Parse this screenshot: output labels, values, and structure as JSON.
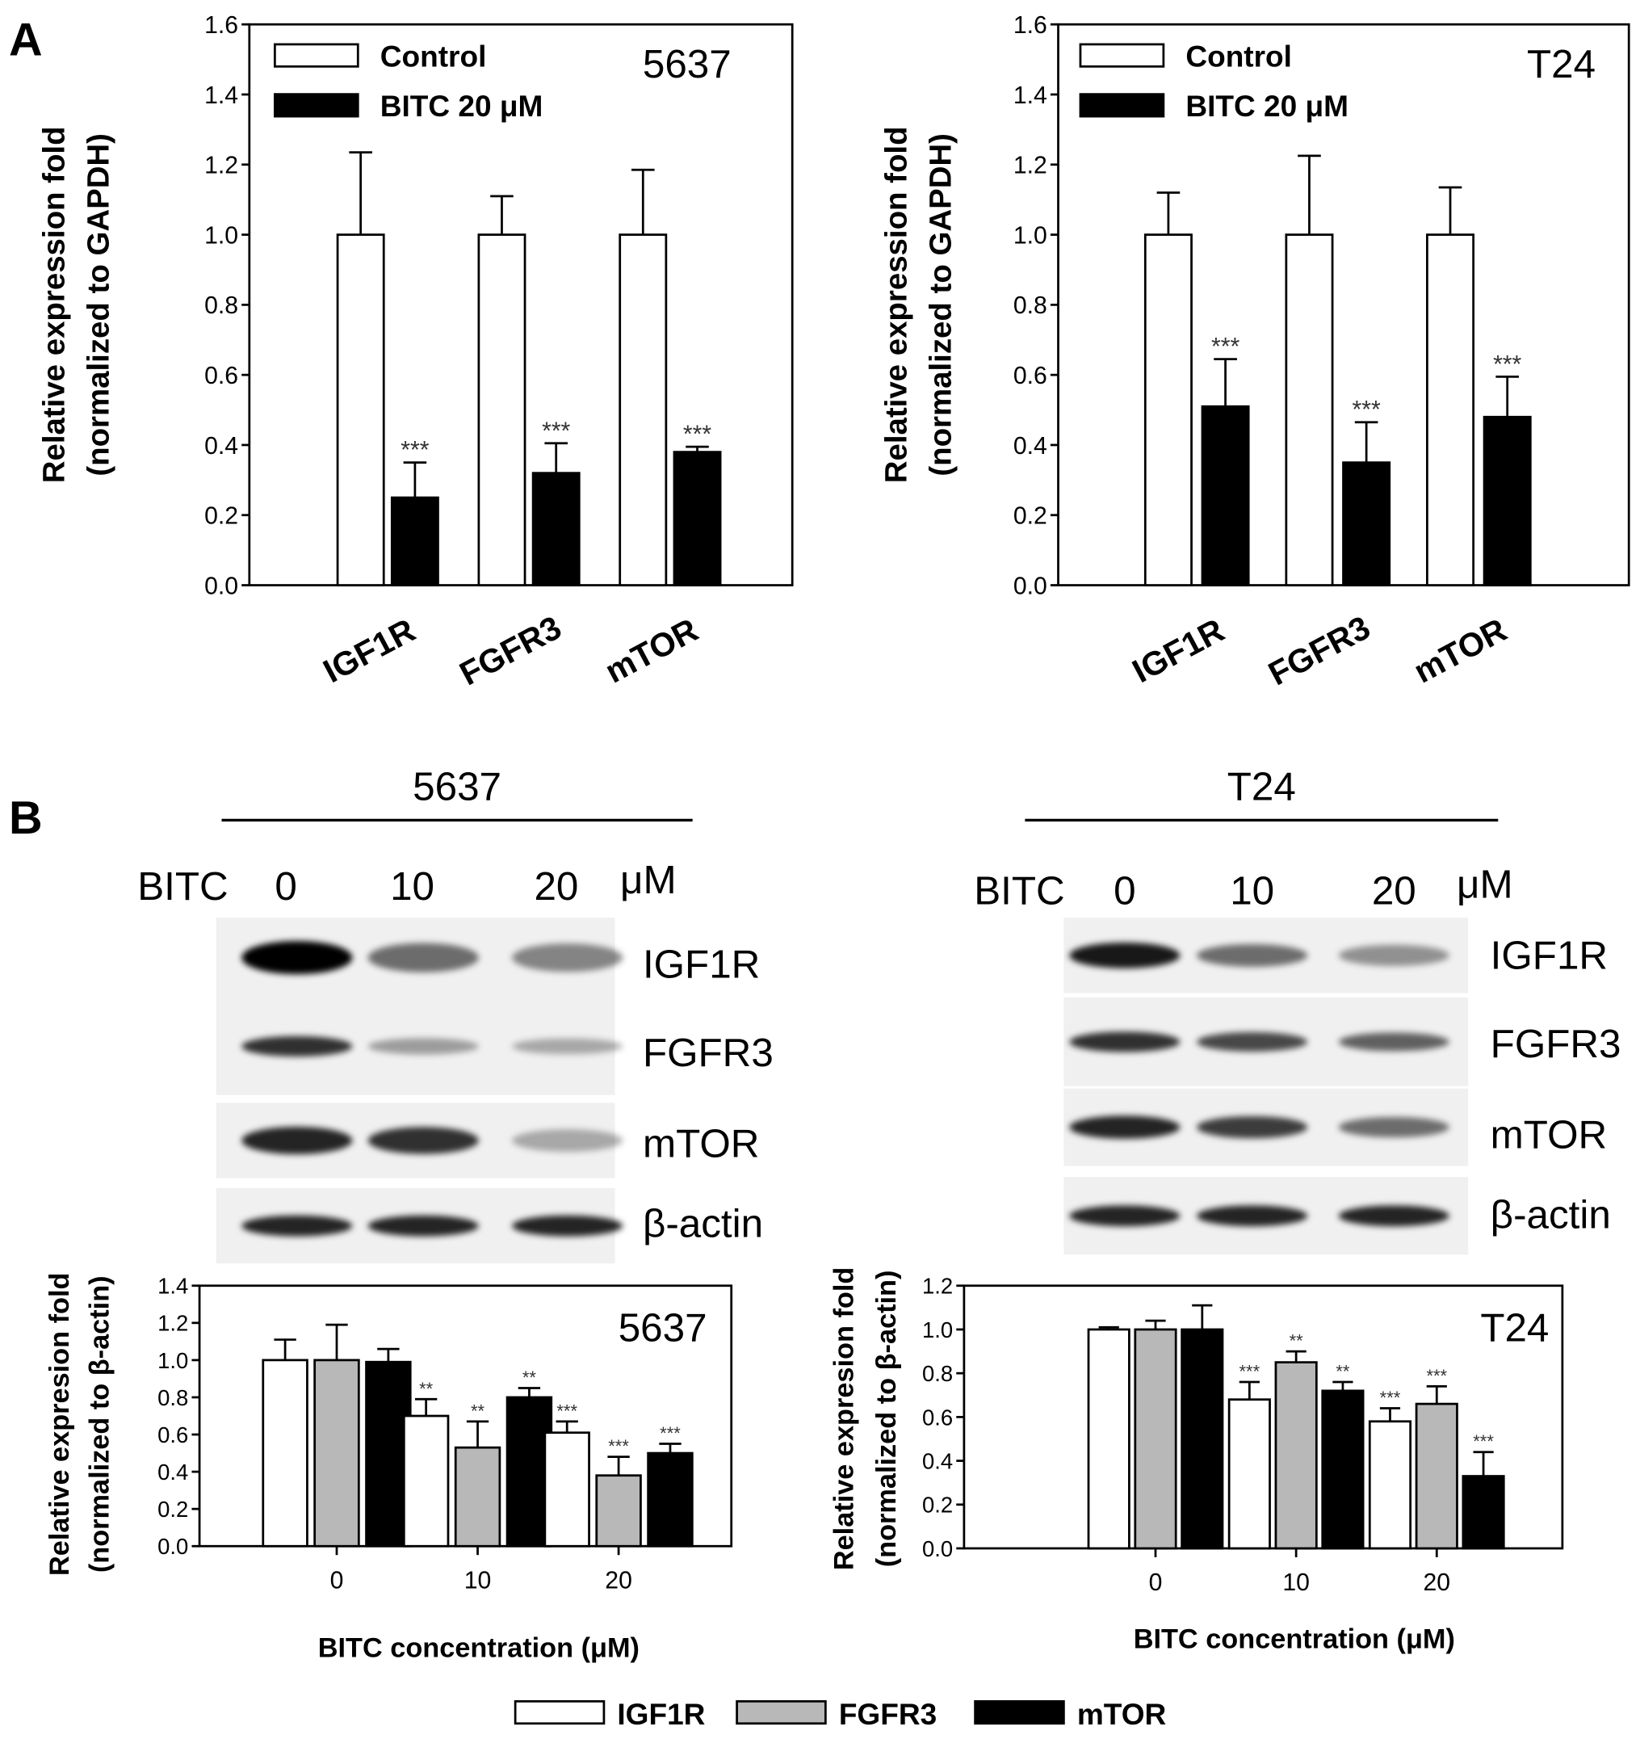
{
  "panel_labels": {
    "a": "A",
    "b": "B"
  },
  "chart_data": [
    {
      "id": "qpcr-5637",
      "type": "bar",
      "title": "5637",
      "ylabel": [
        "Relative expression fold",
        "(normalized to GAPDH)"
      ],
      "ylim": [
        0,
        1.6
      ],
      "yticks": [
        "0.0",
        "0.2",
        "0.4",
        "0.6",
        "0.8",
        "1.0",
        "1.2",
        "1.4",
        "1.6"
      ],
      "categories": [
        "IGF1R",
        "FGFR3",
        "mTOR"
      ],
      "legend": "top-left",
      "series": [
        {
          "name": "Control",
          "color": "#ffffff",
          "values": [
            1.0,
            1.0,
            1.0
          ],
          "err_upper": [
            1.235,
            1.11,
            1.185
          ],
          "stars": [
            "",
            "",
            ""
          ]
        },
        {
          "name": "BITC 20 μM",
          "color": "#000000",
          "values": [
            0.25,
            0.32,
            0.38
          ],
          "err_upper": [
            0.35,
            0.405,
            0.395
          ],
          "stars": [
            "***",
            "***",
            "***"
          ]
        }
      ]
    },
    {
      "id": "qpcr-t24",
      "type": "bar",
      "title": "T24",
      "ylabel": [
        "Relative expression fold",
        "(normalized to GAPDH)"
      ],
      "ylim": [
        0,
        1.6
      ],
      "yticks": [
        "0.0",
        "0.2",
        "0.4",
        "0.6",
        "0.8",
        "1.0",
        "1.2",
        "1.4",
        "1.6"
      ],
      "categories": [
        "IGF1R",
        "FGFR3",
        "mTOR"
      ],
      "legend": "top-left",
      "series": [
        {
          "name": "Control",
          "color": "#ffffff",
          "values": [
            1.0,
            1.0,
            1.0
          ],
          "err_upper": [
            1.12,
            1.225,
            1.135
          ],
          "stars": [
            "",
            "",
            ""
          ]
        },
        {
          "name": "BITC 20 μM",
          "color": "#000000",
          "values": [
            0.51,
            0.35,
            0.48
          ],
          "err_upper": [
            0.645,
            0.465,
            0.595
          ],
          "stars": [
            "***",
            "***",
            "***"
          ]
        }
      ]
    },
    {
      "id": "wb-5637",
      "type": "bar",
      "title": "5637",
      "ylabel": [
        "Relative expresion fold",
        "(normalized to β-actin)"
      ],
      "xlabel": "BITC concentration (μM)",
      "ylim": [
        0,
        1.4
      ],
      "yticks": [
        "0.0",
        "0.2",
        "0.4",
        "0.6",
        "0.8",
        "1.0",
        "1.2",
        "1.4"
      ],
      "categories": [
        "0",
        "10",
        "20"
      ],
      "series": [
        {
          "name": "IGF1R",
          "color": "#ffffff",
          "values": [
            1.0,
            0.7,
            0.61
          ],
          "err_upper": [
            1.11,
            0.79,
            0.67
          ],
          "stars": [
            "",
            "**",
            "***"
          ]
        },
        {
          "name": "FGFR3",
          "color": "#b8b8b8",
          "values": [
            1.0,
            0.53,
            0.38
          ],
          "err_upper": [
            1.19,
            0.67,
            0.48
          ],
          "stars": [
            "",
            "**",
            "***"
          ]
        },
        {
          "name": "mTOR",
          "color": "#000000",
          "values": [
            0.99,
            0.8,
            0.5
          ],
          "err_upper": [
            1.06,
            0.85,
            0.55
          ],
          "stars": [
            "",
            "**",
            "***"
          ]
        }
      ]
    },
    {
      "id": "wb-t24",
      "type": "bar",
      "title": "T24",
      "ylabel": [
        "Relative expresion fold",
        "(normalized to β-actin)"
      ],
      "xlabel": "BITC concentration (μM)",
      "ylim": [
        0,
        1.2
      ],
      "yticks": [
        "0.0",
        "0.2",
        "0.4",
        "0.6",
        "0.8",
        "1.0",
        "1.2"
      ],
      "categories": [
        "0",
        "10",
        "20"
      ],
      "series": [
        {
          "name": "IGF1R",
          "color": "#ffffff",
          "values": [
            1.0,
            0.68,
            0.58
          ],
          "err_upper": [
            1.01,
            0.76,
            0.64
          ],
          "stars": [
            "",
            "***",
            "***"
          ]
        },
        {
          "name": "FGFR3",
          "color": "#b8b8b8",
          "values": [
            1.0,
            0.85,
            0.66
          ],
          "err_upper": [
            1.04,
            0.9,
            0.74
          ],
          "stars": [
            "",
            "**",
            "***"
          ]
        },
        {
          "name": "mTOR",
          "color": "#000000",
          "values": [
            1.0,
            0.72,
            0.33
          ],
          "err_upper": [
            1.11,
            0.76,
            0.44
          ],
          "stars": [
            "",
            "**",
            "***"
          ]
        }
      ]
    }
  ],
  "blots": [
    {
      "cell_line": "5637",
      "treatment": "BITC",
      "doses": [
        "0",
        "10",
        "20"
      ],
      "unit": "μM",
      "proteins": [
        "IGF1R",
        "FGFR3",
        "mTOR",
        "β-actin"
      ]
    },
    {
      "cell_line": "T24",
      "treatment": "BITC",
      "doses": [
        "0",
        "10",
        "20"
      ],
      "unit": "μM",
      "proteins": [
        "IGF1R",
        "FGFR3",
        "mTOR",
        "β-actin"
      ]
    }
  ],
  "bottom_legend": [
    {
      "name": "IGF1R",
      "color": "#ffffff"
    },
    {
      "name": "FGFR3",
      "color": "#b8b8b8"
    },
    {
      "name": "mTOR",
      "color": "#000000"
    }
  ]
}
